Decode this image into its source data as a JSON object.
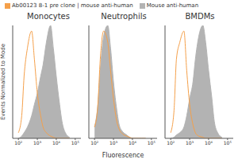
{
  "chart_data": [
    {
      "type": "area",
      "title": "Monocytes",
      "ylabel": "Events Normalized to Mode",
      "legend": "top",
      "log": "x",
      "tick_labels": "x",
      "xlim": [
        50,
        200000
      ],
      "xticks": [
        {
          "value": 100,
          "label": "10²"
        },
        {
          "value": 1000,
          "label": "10³"
        },
        {
          "value": 10000,
          "label": "10⁴"
        },
        {
          "value": 100000,
          "label": "10⁵"
        }
      ],
      "ylim": [
        0,
        100
      ],
      "x": [
        100,
        150,
        200,
        300,
        500,
        700,
        1000,
        1500,
        2000,
        3000,
        5000,
        7000,
        10000,
        15000,
        20000,
        30000,
        50000
      ],
      "series": [
        {
          "name": "Mouse anti-human",
          "type": "area",
          "color": "#b3b3b3",
          "values": [
            0,
            2,
            5,
            10,
            20,
            30,
            40,
            55,
            65,
            85,
            100,
            80,
            55,
            30,
            15,
            5,
            1
          ]
        },
        {
          "name": "Ab00123 8-1 pre clone | mouse anti-human",
          "type": "line",
          "color": "#f5a04a",
          "values": [
            5,
            20,
            55,
            80,
            95,
            70,
            40,
            20,
            10,
            5,
            2,
            1,
            0,
            0,
            0,
            0,
            0
          ]
        }
      ]
    },
    {
      "type": "area",
      "title": "Neutrophils",
      "xlabel": "Fluorescence",
      "log": "x",
      "tick_labels": "x",
      "xlim": [
        50,
        200000
      ],
      "xticks": [
        {
          "value": 100,
          "label": "10²"
        },
        {
          "value": 1000,
          "label": "10³"
        },
        {
          "value": 10000,
          "label": "10⁴"
        },
        {
          "value": 100000,
          "label": "10⁵"
        }
      ],
      "ylim": [
        0,
        100
      ],
      "x": [
        100,
        150,
        200,
        300,
        500,
        700,
        1000,
        1500,
        2000,
        3000,
        5000,
        7000,
        10000,
        15000,
        20000,
        30000,
        50000
      ],
      "series": [
        {
          "type": "area",
          "color": "#b3b3b3",
          "values": [
            10,
            30,
            60,
            90,
            100,
            80,
            50,
            25,
            12,
            6,
            3,
            1,
            0,
            0,
            0,
            0,
            0
          ]
        },
        {
          "type": "line",
          "color": "#f5a04a",
          "values": [
            10,
            30,
            70,
            95,
            85,
            60,
            35,
            15,
            8,
            4,
            2,
            1,
            0,
            0,
            0,
            0,
            0
          ]
        }
      ]
    },
    {
      "type": "area",
      "title": "BMDMs",
      "log": "x",
      "tick_labels": "x",
      "xlim": [
        50,
        200000
      ],
      "xticks": [
        {
          "value": 100,
          "label": "10²"
        },
        {
          "value": 1000,
          "label": "10³"
        },
        {
          "value": 10000,
          "label": "10⁴"
        },
        {
          "value": 100000,
          "label": "10⁵"
        }
      ],
      "ylim": [
        0,
        100
      ],
      "x": [
        100,
        150,
        200,
        300,
        500,
        700,
        1000,
        1500,
        2000,
        3000,
        5000,
        7000,
        10000,
        15000,
        20000,
        30000,
        50000
      ],
      "series": [
        {
          "type": "area",
          "color": "#b3b3b3",
          "values": [
            0,
            1,
            3,
            5,
            10,
            20,
            35,
            50,
            70,
            90,
            100,
            85,
            60,
            35,
            15,
            5,
            1
          ]
        },
        {
          "type": "line",
          "color": "#f5a04a",
          "values": [
            5,
            25,
            70,
            85,
            95,
            60,
            30,
            12,
            5,
            2,
            1,
            0,
            0,
            0,
            0,
            0,
            0
          ]
        }
      ]
    }
  ]
}
